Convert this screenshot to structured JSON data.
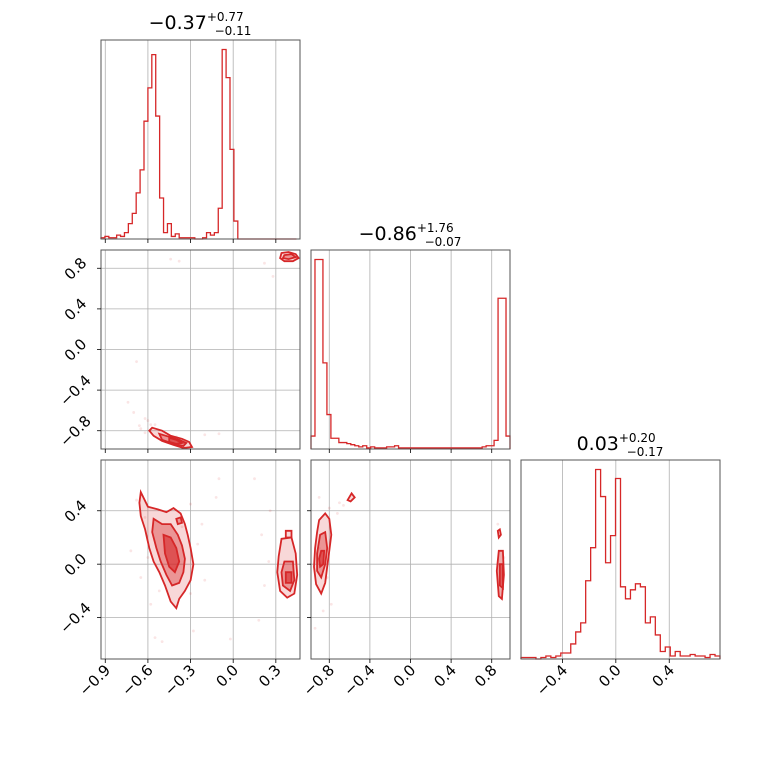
{
  "color": "#d62728",
  "chart_data": {
    "type": "corner",
    "grid": true,
    "parameters": [
      {
        "range": [
          -0.93,
          -0.9,
          0.47
        ],
        "ticks": [
          -0.9,
          -0.6,
          -0.3,
          0.0,
          0.3
        ],
        "tick_labels": [
          "−0.9",
          "−0.6",
          "−0.3",
          "0.0",
          "0.3"
        ],
        "title_main": "−0.37",
        "title_plus": "+0.77",
        "title_minus": "−0.11",
        "hist": {
          "start": -0.93,
          "step": 0.0275,
          "values": [
            0.5,
            1,
            0.5,
            0.5,
            1.5,
            1,
            2.5,
            6,
            10,
            18,
            27,
            46,
            59,
            72,
            48,
            16,
            2.5,
            6,
            1,
            2,
            0.5,
            0.5,
            0.5,
            0.5,
            0,
            0,
            0.5,
            2.5,
            1.5,
            2.5,
            12,
            74,
            63,
            35,
            7,
            0,
            0,
            0,
            0,
            0,
            0,
            0,
            0,
            0,
            0,
            0,
            0,
            0,
            0,
            0
          ]
        }
      },
      {
        "range": [
          -0.98,
          -0.9,
          0.98
        ],
        "ticks": [
          -0.8,
          -0.4,
          0.0,
          0.4,
          0.8
        ],
        "tick_labels": [
          "−0.8",
          "−0.4",
          "0.0",
          "0.4",
          "0.8"
        ],
        "title_main": "−0.86",
        "title_plus": "+1.76",
        "title_minus": "−0.07",
        "hist": {
          "start": -0.98,
          "step": 0.0392,
          "values": [
            6,
            88,
            88,
            40,
            16,
            5,
            5,
            3,
            3,
            2.5,
            2,
            1.5,
            1,
            1.5,
            0.5,
            1,
            0.5,
            0.5,
            0.5,
            1,
            1,
            1.5,
            0.5,
            0.5,
            0.5,
            0.5,
            0.5,
            0.5,
            0.5,
            0.5,
            0.5,
            0.5,
            0.5,
            0.5,
            0.5,
            0.5,
            0.5,
            0.5,
            0.5,
            0.5,
            0.5,
            0.5,
            0.5,
            1,
            1.5,
            1.5,
            4,
            70,
            70,
            6
          ]
        }
      },
      {
        "range": [
          -0.71,
          -0.7,
          0.78
        ],
        "ticks": [
          -0.4,
          0.0,
          0.4
        ],
        "tick_labels": [
          "−0.4",
          "0.0",
          "0.4"
        ],
        "title_main": "0.03",
        "title_plus": "+0.20",
        "title_minus": "−0.17",
        "hist": {
          "start": -0.71,
          "step": 0.03725,
          "values": [
            0.5,
            0.5,
            0.5,
            0,
            0.5,
            1,
            0.5,
            1,
            2,
            2,
            5,
            9,
            12,
            26,
            37,
            63,
            54,
            32,
            41,
            60,
            24,
            20,
            23,
            25,
            24,
            12,
            14,
            8,
            2.5,
            4,
            1,
            2.5,
            1,
            1,
            1.5,
            1,
            1,
            0.5,
            1.5,
            1
          ]
        }
      }
    ],
    "pairs": [
      {
        "x_param": 0,
        "y_param": 1,
        "scatter": [
          [
            -0.44,
            0.89
          ],
          [
            -0.38,
            0.87
          ],
          [
            -0.65,
            -0.78
          ],
          [
            -0.7,
            -0.62
          ],
          [
            -0.62,
            -0.68
          ],
          [
            -0.55,
            -0.74
          ],
          [
            -0.5,
            -0.84
          ],
          [
            -0.4,
            -0.86
          ],
          [
            -0.35,
            -0.95
          ],
          [
            -0.3,
            -0.96
          ],
          [
            -0.2,
            -0.84
          ],
          [
            -0.68,
            -0.12
          ],
          [
            -0.74,
            -0.52
          ],
          [
            -0.6,
            -0.7
          ],
          [
            0.22,
            0.85
          ],
          [
            0.28,
            0.72
          ],
          [
            -0.1,
            -0.83
          ],
          [
            -0.58,
            -0.74
          ],
          [
            -0.62,
            -0.82
          ],
          [
            -0.66,
            -0.75
          ]
        ],
        "contours": [
          [
            [
              -0.57,
              -0.77
            ],
            [
              -0.5,
              -0.8
            ],
            [
              -0.44,
              -0.85
            ],
            [
              -0.36,
              -0.88
            ],
            [
              -0.31,
              -0.91
            ],
            [
              -0.29,
              -0.96
            ],
            [
              -0.35,
              -0.97
            ],
            [
              -0.42,
              -0.94
            ],
            [
              -0.5,
              -0.9
            ],
            [
              -0.56,
              -0.85
            ],
            [
              -0.59,
              -0.8
            ]
          ],
          [
            [
              -0.52,
              -0.83
            ],
            [
              -0.45,
              -0.86
            ],
            [
              -0.38,
              -0.89
            ],
            [
              -0.33,
              -0.92
            ],
            [
              -0.35,
              -0.95
            ],
            [
              -0.42,
              -0.93
            ],
            [
              -0.5,
              -0.89
            ]
          ],
          [
            [
              -0.45,
              -0.87
            ],
            [
              -0.4,
              -0.89
            ],
            [
              -0.36,
              -0.92
            ],
            [
              -0.4,
              -0.93
            ],
            [
              -0.45,
              -0.91
            ]
          ],
          [
            [
              0.34,
              0.95
            ],
            [
              0.39,
              0.96
            ],
            [
              0.44,
              0.94
            ],
            [
              0.46,
              0.9
            ],
            [
              0.42,
              0.87
            ],
            [
              0.36,
              0.87
            ],
            [
              0.33,
              0.9
            ]
          ],
          [
            [
              0.36,
              0.93
            ],
            [
              0.41,
              0.94
            ],
            [
              0.44,
              0.91
            ],
            [
              0.39,
              0.89
            ],
            [
              0.35,
              0.9
            ]
          ]
        ]
      },
      {
        "x_param": 0,
        "y_param": 2,
        "scatter": [
          [
            -0.68,
            0.48
          ],
          [
            -0.72,
            0.1
          ],
          [
            -0.65,
            -0.1
          ],
          [
            -0.58,
            -0.3
          ],
          [
            -0.62,
            0.35
          ],
          [
            -0.55,
            -0.55
          ],
          [
            -0.5,
            -0.58
          ],
          [
            -0.3,
            0.45
          ],
          [
            -0.25,
            0.15
          ],
          [
            -0.2,
            -0.12
          ],
          [
            -0.28,
            -0.5
          ],
          [
            -0.12,
            0.5
          ],
          [
            -0.1,
            0.64
          ],
          [
            -0.02,
            -0.56
          ],
          [
            0.15,
            0.64
          ],
          [
            0.2,
            0.22
          ],
          [
            0.25,
            0.02
          ],
          [
            0.18,
            -0.42
          ],
          [
            -0.36,
            0.28
          ],
          [
            -0.48,
            0.1
          ],
          [
            -0.52,
            -0.2
          ],
          [
            -0.6,
            0.05
          ],
          [
            -0.3,
            -0.22
          ],
          [
            -0.22,
            0.3
          ],
          [
            0.22,
            -0.16
          ],
          [
            0.26,
            0.4
          ]
        ],
        "contours": [
          [
            [
              -0.65,
              0.54
            ],
            [
              -0.6,
              0.43
            ],
            [
              -0.53,
              0.41
            ],
            [
              -0.47,
              0.39
            ],
            [
              -0.42,
              0.42
            ],
            [
              -0.37,
              0.38
            ],
            [
              -0.34,
              0.3
            ],
            [
              -0.32,
              0.22
            ],
            [
              -0.3,
              0.12
            ],
            [
              -0.28,
              0.0
            ],
            [
              -0.3,
              -0.12
            ],
            [
              -0.34,
              -0.2
            ],
            [
              -0.38,
              -0.26
            ],
            [
              -0.4,
              -0.33
            ],
            [
              -0.44,
              -0.28
            ],
            [
              -0.48,
              -0.16
            ],
            [
              -0.52,
              -0.06
            ],
            [
              -0.56,
              0.02
            ],
            [
              -0.59,
              0.12
            ],
            [
              -0.62,
              0.26
            ],
            [
              -0.65,
              0.36
            ],
            [
              -0.66,
              0.46
            ]
          ],
          [
            [
              -0.56,
              0.34
            ],
            [
              -0.5,
              0.3
            ],
            [
              -0.44,
              0.3
            ],
            [
              -0.39,
              0.22
            ],
            [
              -0.36,
              0.14
            ],
            [
              -0.34,
              0.04
            ],
            [
              -0.35,
              -0.06
            ],
            [
              -0.38,
              -0.14
            ],
            [
              -0.43,
              -0.16
            ],
            [
              -0.47,
              -0.08
            ],
            [
              -0.51,
              0.02
            ],
            [
              -0.54,
              0.12
            ],
            [
              -0.57,
              0.24
            ]
          ],
          [
            [
              -0.49,
              0.22
            ],
            [
              -0.44,
              0.2
            ],
            [
              -0.4,
              0.12
            ],
            [
              -0.38,
              0.02
            ],
            [
              -0.41,
              -0.06
            ],
            [
              -0.45,
              -0.02
            ],
            [
              -0.48,
              0.08
            ]
          ],
          [
            [
              0.34,
              0.19
            ],
            [
              0.41,
              0.2
            ],
            [
              0.44,
              0.08
            ],
            [
              0.45,
              -0.08
            ],
            [
              0.43,
              -0.22
            ],
            [
              0.38,
              -0.25
            ],
            [
              0.33,
              -0.2
            ],
            [
              0.31,
              -0.06
            ],
            [
              0.32,
              0.06
            ]
          ],
          [
            [
              0.36,
              0.02
            ],
            [
              0.42,
              0.02
            ],
            [
              0.43,
              -0.12
            ],
            [
              0.4,
              -0.2
            ],
            [
              0.35,
              -0.16
            ],
            [
              0.34,
              -0.06
            ]
          ],
          [
            [
              0.37,
              -0.06
            ],
            [
              0.41,
              -0.06
            ],
            [
              0.41,
              -0.14
            ],
            [
              0.37,
              -0.14
            ]
          ],
          [
            [
              0.37,
              0.25
            ],
            [
              0.41,
              0.25
            ],
            [
              0.41,
              0.2
            ],
            [
              0.37,
              0.2
            ]
          ],
          [
            [
              -0.4,
              0.34
            ],
            [
              -0.37,
              0.35
            ],
            [
              -0.36,
              0.31
            ],
            [
              -0.39,
              0.3
            ]
          ]
        ]
      },
      {
        "x_param": 1,
        "y_param": 2,
        "scatter": [
          [
            -0.9,
            0.5
          ],
          [
            -0.8,
            0.42
          ],
          [
            -0.72,
            0.38
          ],
          [
            -0.7,
            0.46
          ],
          [
            -0.86,
            -0.35
          ],
          [
            -0.78,
            -0.3
          ],
          [
            -0.94,
            -0.48
          ],
          [
            -0.66,
            0.44
          ],
          [
            -0.9,
            0.12
          ],
          [
            -0.82,
            -0.1
          ],
          [
            0.86,
            0.3
          ],
          [
            0.9,
            -0.26
          ],
          [
            0.92,
            0.05
          ]
        ],
        "contours": [
          [
            [
              -0.9,
              0.33
            ],
            [
              -0.84,
              0.38
            ],
            [
              -0.8,
              0.34
            ],
            [
              -0.78,
              0.22
            ],
            [
              -0.8,
              0.1
            ],
            [
              -0.82,
              -0.02
            ],
            [
              -0.84,
              -0.14
            ],
            [
              -0.88,
              -0.22
            ],
            [
              -0.93,
              -0.15
            ],
            [
              -0.95,
              -0.02
            ],
            [
              -0.94,
              0.12
            ],
            [
              -0.92,
              0.24
            ]
          ],
          [
            [
              -0.89,
              0.22
            ],
            [
              -0.84,
              0.24
            ],
            [
              -0.82,
              0.12
            ],
            [
              -0.84,
              0.0
            ],
            [
              -0.88,
              -0.1
            ],
            [
              -0.92,
              -0.05
            ],
            [
              -0.92,
              0.08
            ]
          ],
          [
            [
              -0.88,
              0.1
            ],
            [
              -0.85,
              0.1
            ],
            [
              -0.86,
              0.0
            ],
            [
              -0.89,
              -0.02
            ],
            [
              -0.9,
              0.04
            ]
          ],
          [
            [
              -0.62,
              0.48
            ],
            [
              -0.58,
              0.53
            ],
            [
              -0.55,
              0.5
            ],
            [
              -0.59,
              0.47
            ]
          ],
          [
            [
              0.87,
              0.1
            ],
            [
              0.91,
              0.1
            ],
            [
              0.92,
              -0.08
            ],
            [
              0.9,
              -0.26
            ],
            [
              0.87,
              -0.24
            ],
            [
              0.85,
              -0.05
            ]
          ],
          [
            [
              0.88,
              0.0
            ],
            [
              0.91,
              0.0
            ],
            [
              0.91,
              -0.18
            ],
            [
              0.88,
              -0.16
            ]
          ],
          [
            [
              0.86,
              0.25
            ],
            [
              0.88,
              0.26
            ],
            [
              0.89,
              0.22
            ],
            [
              0.87,
              0.2
            ]
          ]
        ]
      }
    ]
  }
}
